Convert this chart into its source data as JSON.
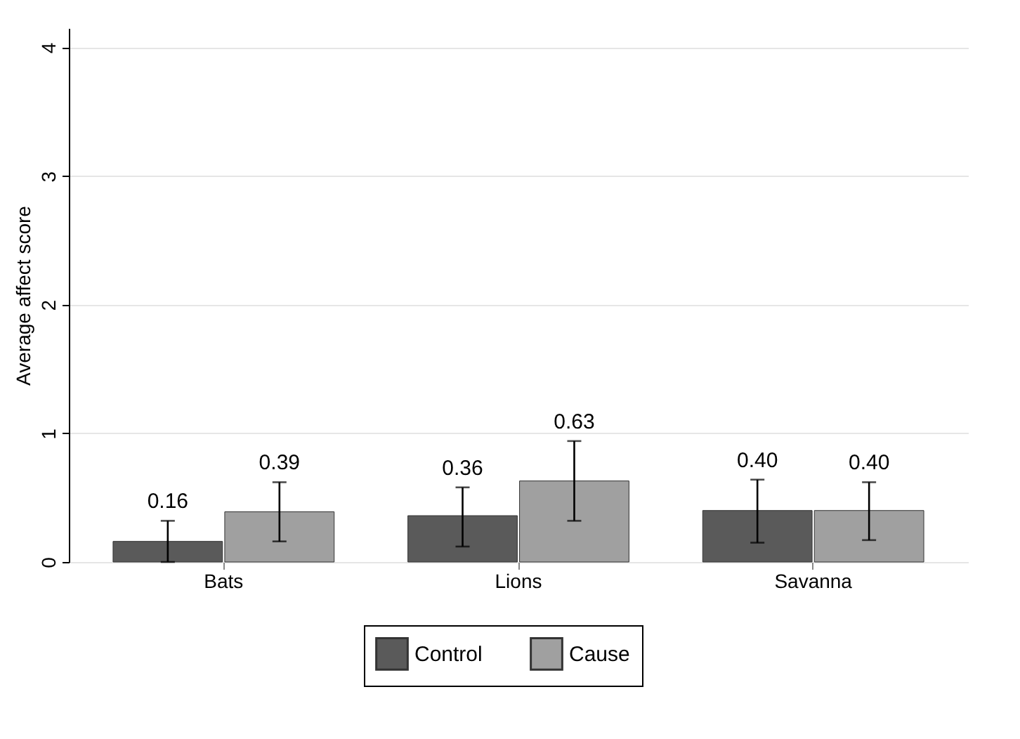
{
  "chart_data": {
    "type": "bar",
    "ylabel": "Average affect score",
    "categories": [
      "Bats",
      "Lions",
      "Savanna"
    ],
    "series": [
      {
        "name": "Control",
        "color": "#5a5a5a",
        "values": [
          0.16,
          0.36,
          0.4
        ],
        "value_labels": [
          "0.16",
          "0.36",
          "0.40"
        ],
        "errors": [
          [
            0.0,
            0.32
          ],
          [
            0.12,
            0.58
          ],
          [
            0.15,
            0.64
          ]
        ]
      },
      {
        "name": "Cause",
        "color": "#a0a0a0",
        "values": [
          0.39,
          0.63,
          0.4
        ],
        "value_labels": [
          "0.39",
          "0.63",
          "0.40"
        ],
        "errors": [
          [
            0.16,
            0.62
          ],
          [
            0.32,
            0.94
          ],
          [
            0.17,
            0.62
          ]
        ]
      }
    ],
    "ylim": [
      0,
      4.15
    ],
    "yticks": [
      0,
      1,
      2,
      3,
      4
    ],
    "grid": "y",
    "legend": "bottom"
  }
}
